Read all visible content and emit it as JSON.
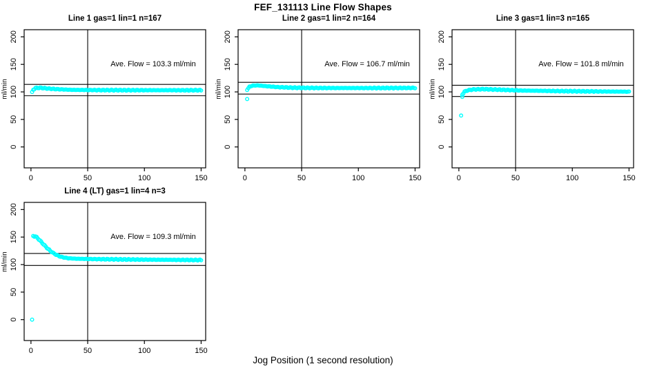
{
  "window": {
    "background_color": "#ffffff",
    "text_color": "#000000"
  },
  "chart_data": {
    "type": "scatter",
    "title": "FEF_131113  Line Flow Shapes",
    "xlabel": "Jog Position (1 second resolution)",
    "ylabel": "ml/min",
    "x_ticks": [
      0,
      50,
      100,
      150
    ],
    "y_ticks": [
      0,
      50,
      100,
      150,
      200
    ],
    "xlim": [
      -6,
      154
    ],
    "ylim": [
      -38,
      213
    ],
    "grid": false,
    "legend": "none",
    "vline_x": 50,
    "marker_color": "#00FFFF",
    "marker_style": "open-circle",
    "axis_color": "#000000",
    "panels": [
      {
        "title": "Line 1 gas=1 lin=1 n=167",
        "line": 1,
        "gas": 1,
        "lin": 1,
        "n": 167,
        "ave_flow": 103.3,
        "ave_flow_label": "Ave. Flow =  103.3  ml/min",
        "ref_upper": 113.6,
        "ref_lower": 93.0,
        "outliers": [],
        "curve": [
          [
            1,
            99
          ],
          [
            2,
            104
          ],
          [
            4,
            107
          ],
          [
            8,
            107.5
          ],
          [
            14,
            106.3
          ],
          [
            22,
            105
          ],
          [
            35,
            103.8
          ],
          [
            55,
            103.3
          ],
          [
            90,
            103.1
          ],
          [
            150,
            103
          ]
        ]
      },
      {
        "title": "Line 2 gas=1 lin=2 n=164",
        "line": 2,
        "gas": 1,
        "lin": 2,
        "n": 164,
        "ave_flow": 106.7,
        "ave_flow_label": "Ave. Flow =  106.7  ml/min",
        "ref_upper": 117.4,
        "ref_lower": 96.0,
        "outliers": [
          [
            2,
            87
          ]
        ],
        "curve": [
          [
            2,
            104
          ],
          [
            4,
            109.5
          ],
          [
            7,
            111.5
          ],
          [
            12,
            111.8
          ],
          [
            18,
            110.5
          ],
          [
            28,
            108.8
          ],
          [
            42,
            107.6
          ],
          [
            65,
            107.1
          ],
          [
            110,
            107
          ],
          [
            150,
            107.2
          ]
        ]
      },
      {
        "title": "Line 3 gas=1 lin=3 n=165",
        "line": 3,
        "gas": 1,
        "lin": 3,
        "n": 165,
        "ave_flow": 101.8,
        "ave_flow_label": "Ave. Flow =  101.8  ml/min",
        "ref_upper": 112.0,
        "ref_lower": 91.6,
        "outliers": [
          [
            2,
            57
          ],
          [
            3,
            91
          ]
        ],
        "curve": [
          [
            3,
            95
          ],
          [
            5,
            100.5
          ],
          [
            8,
            103
          ],
          [
            13,
            104.5
          ],
          [
            22,
            105
          ],
          [
            35,
            104
          ],
          [
            55,
            102.5
          ],
          [
            85,
            101.5
          ],
          [
            120,
            100.8
          ],
          [
            150,
            100.4
          ]
        ]
      },
      {
        "title": "Line 4 (LT) gas=1 lin=4 n=3",
        "line": 4,
        "gas": 1,
        "lin": 4,
        "n": 3,
        "ave_flow": 109.3,
        "ave_flow_label": "Ave. Flow =  109.3  ml/min",
        "ref_upper": 120.2,
        "ref_lower": 98.4,
        "outliers": [
          [
            1,
            0
          ]
        ],
        "curve": [
          [
            2,
            152
          ],
          [
            4,
            151
          ],
          [
            6,
            148
          ],
          [
            8,
            143.5
          ],
          [
            11,
            137
          ],
          [
            14,
            130.5
          ],
          [
            17,
            125
          ],
          [
            20,
            120.5
          ],
          [
            24,
            116
          ],
          [
            28,
            113.2
          ],
          [
            33,
            111.5
          ],
          [
            40,
            110.6
          ],
          [
            55,
            110
          ],
          [
            75,
            109.5
          ],
          [
            100,
            109
          ],
          [
            125,
            108.6
          ],
          [
            150,
            108.2
          ]
        ]
      }
    ]
  }
}
